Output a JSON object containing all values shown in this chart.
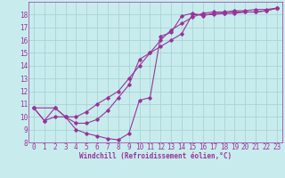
{
  "bg_color": "#c8eced",
  "grid_color": "#a8d4d5",
  "line_color": "#993399",
  "xlim": [
    -0.5,
    23.5
  ],
  "ylim": [
    8,
    19
  ],
  "xticks": [
    0,
    1,
    2,
    3,
    4,
    5,
    6,
    7,
    8,
    9,
    10,
    11,
    12,
    13,
    14,
    15,
    16,
    17,
    18,
    19,
    20,
    21,
    22,
    23
  ],
  "yticks": [
    8,
    9,
    10,
    11,
    12,
    13,
    14,
    15,
    16,
    17,
    18
  ],
  "xlabel": "Windchill (Refroidissement éolien,°C)",
  "line1_x": [
    0,
    1,
    2,
    3,
    4,
    5,
    6,
    7,
    8,
    9,
    10,
    11,
    12,
    13,
    14,
    15,
    16,
    17,
    18,
    19,
    20,
    21,
    22,
    23
  ],
  "line1_y": [
    10.7,
    9.7,
    10.7,
    10.0,
    9.0,
    8.7,
    8.5,
    8.3,
    8.2,
    8.7,
    11.3,
    11.5,
    16.3,
    16.6,
    17.9,
    18.1,
    17.9,
    18.1,
    18.1,
    18.2,
    18.2,
    18.2,
    18.3,
    18.5
  ],
  "line2_x": [
    0,
    2,
    3,
    4,
    5,
    6,
    7,
    8,
    9,
    10,
    11,
    12,
    13,
    14,
    15,
    16,
    17,
    18,
    19,
    20,
    21,
    22,
    23
  ],
  "line2_y": [
    10.7,
    10.7,
    10.0,
    10.0,
    10.4,
    11.0,
    11.5,
    12.0,
    13.0,
    14.0,
    15.0,
    16.0,
    16.8,
    17.3,
    17.8,
    18.1,
    18.2,
    18.2,
    18.3,
    18.3,
    18.4,
    18.4,
    18.5
  ],
  "line3_x": [
    0,
    1,
    2,
    3,
    4,
    5,
    6,
    7,
    8,
    9,
    10,
    11,
    12,
    13,
    14,
    15,
    16,
    17,
    18,
    19,
    20,
    21,
    22,
    23
  ],
  "line3_y": [
    10.7,
    9.7,
    10.0,
    10.0,
    9.5,
    9.5,
    9.8,
    10.5,
    11.5,
    12.5,
    14.5,
    15.0,
    15.5,
    16.0,
    16.5,
    18.0,
    18.0,
    18.0,
    18.1,
    18.1,
    18.2,
    18.2,
    18.3,
    18.5
  ],
  "tick_fontsize": 5.5,
  "xlabel_fontsize": 5.5
}
